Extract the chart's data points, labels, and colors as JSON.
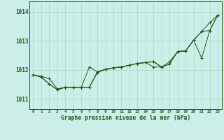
{
  "title": "Graphe pression niveau de la mer (hPa)",
  "background_color": "#cceee8",
  "grid_color": "#aaddcc",
  "line_color": "#1a5c1a",
  "xlim": [
    -0.5,
    23.5
  ],
  "ylim": [
    1010.65,
    1014.35
  ],
  "yticks": [
    1011,
    1012,
    1013,
    1014
  ],
  "xtick_labels": [
    "0",
    "1",
    "2",
    "3",
    "4",
    "5",
    "6",
    "7",
    "8",
    "9",
    "10",
    "11",
    "12",
    "13",
    "14",
    "15",
    "16",
    "17",
    "18",
    "19",
    "20",
    "21",
    "22",
    "23"
  ],
  "series": [
    [
      1011.83,
      1011.78,
      1011.7,
      1011.35,
      1011.4,
      1011.4,
      1011.4,
      1011.4,
      1011.9,
      1012.02,
      1012.07,
      1012.1,
      1012.16,
      1012.22,
      1012.25,
      1012.28,
      1012.1,
      1012.2,
      1012.63,
      1012.65,
      1013.02,
      1013.32,
      1013.62,
      1013.88
    ],
    [
      1011.83,
      1011.75,
      1011.52,
      1011.32,
      1011.4,
      1011.4,
      1011.4,
      1012.1,
      1011.93,
      1012.02,
      1012.07,
      1012.1,
      1012.16,
      1012.22,
      1012.25,
      1012.1,
      1012.1,
      1012.28,
      1012.63,
      1012.65,
      1013.02,
      1012.4,
      1013.35,
      1013.88
    ],
    [
      1011.83,
      1011.75,
      1011.52,
      1011.32,
      1011.4,
      1011.4,
      1011.4,
      1011.4,
      1011.93,
      1012.02,
      1012.07,
      1012.1,
      1012.16,
      1012.22,
      1012.25,
      1012.28,
      1012.1,
      1012.2,
      1012.63,
      1012.65,
      1013.02,
      1013.32,
      1013.35,
      1013.88
    ]
  ],
  "figsize": [
    3.2,
    2.0
  ],
  "dpi": 100
}
